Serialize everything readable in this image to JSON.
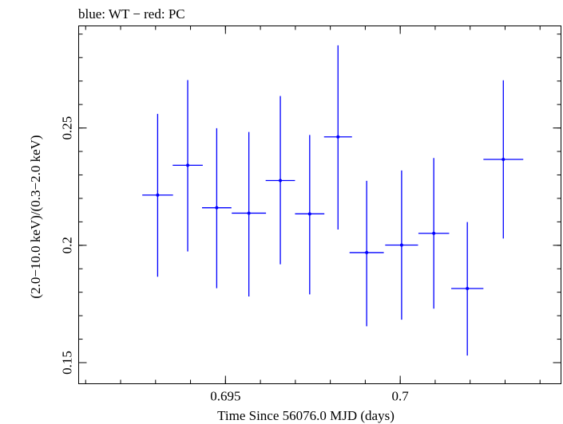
{
  "chart_data": {
    "type": "scatter",
    "title": "blue: WT − red: PC",
    "xlabel": "Time Since 56076.0 MJD (days)",
    "ylabel": "(2.0−10.0 keV)/(0.3−2.0 keV)",
    "xlim": [
      0.6908,
      0.7046
    ],
    "ylim": [
      0.141,
      0.2935
    ],
    "x_ticks": [
      {
        "value": 0.695,
        "label": "0.695"
      },
      {
        "value": 0.7,
        "label": "0.7"
      }
    ],
    "y_ticks": [
      {
        "value": 0.15,
        "label": "0.15"
      },
      {
        "value": 0.2,
        "label": "0.2"
      },
      {
        "value": 0.25,
        "label": "0.25"
      }
    ],
    "x_minor_step": 0.001,
    "y_minor_step": 0.01,
    "grid": false,
    "series": [
      {
        "color": "#0000ff",
        "points": [
          {
            "x": 0.69306,
            "xerr": 0.00044,
            "y": 0.2214,
            "yerr_lo": 0.0348,
            "yerr_hi": 0.0346
          },
          {
            "x": 0.69392,
            "xerr": 0.00043,
            "y": 0.2341,
            "yerr_lo": 0.0367,
            "yerr_hi": 0.0363
          },
          {
            "x": 0.69475,
            "xerr": 0.00042,
            "y": 0.216,
            "yerr_lo": 0.0343,
            "yerr_hi": 0.0339
          },
          {
            "x": 0.69567,
            "xerr": 0.00049,
            "y": 0.2137,
            "yerr_lo": 0.0355,
            "yerr_hi": 0.0346
          },
          {
            "x": 0.69657,
            "xerr": 0.00042,
            "y": 0.2276,
            "yerr_lo": 0.0357,
            "yerr_hi": 0.036
          },
          {
            "x": 0.69741,
            "xerr": 0.00042,
            "y": 0.2134,
            "yerr_lo": 0.0343,
            "yerr_hi": 0.0336
          },
          {
            "x": 0.69822,
            "xerr": 0.0004,
            "y": 0.2462,
            "yerr_lo": 0.0395,
            "yerr_hi": 0.039
          },
          {
            "x": 0.69904,
            "xerr": 0.00049,
            "y": 0.1969,
            "yerr_lo": 0.0314,
            "yerr_hi": 0.0306
          },
          {
            "x": 0.70004,
            "xerr": 0.00047,
            "y": 0.2001,
            "yerr_lo": 0.0318,
            "yerr_hi": 0.0318
          },
          {
            "x": 0.70096,
            "xerr": 0.00044,
            "y": 0.2051,
            "yerr_lo": 0.0321,
            "yerr_hi": 0.0321
          },
          {
            "x": 0.70192,
            "xerr": 0.00046,
            "y": 0.1816,
            "yerr_lo": 0.0286,
            "yerr_hi": 0.0283
          },
          {
            "x": 0.70295,
            "xerr": 0.00057,
            "y": 0.2366,
            "yerr_lo": 0.0337,
            "yerr_hi": 0.0337
          }
        ]
      }
    ]
  }
}
